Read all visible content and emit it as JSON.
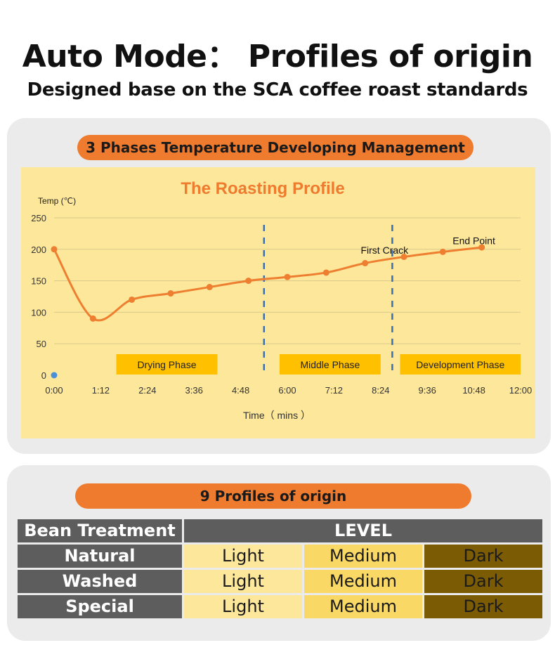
{
  "header": {
    "title": "Auto Mode： Profiles of origin",
    "subtitle": "Designed base on the SCA coffee roast standards"
  },
  "section1": {
    "pill_label": "3 Phases Temperature Developing Management"
  },
  "chart_data": {
    "type": "line",
    "title": "The Roasting Profile",
    "ylabel": "Temp (℃)",
    "xlabel": "Time（ mins ）",
    "ylim": [
      0,
      250
    ],
    "yticks": [
      "0",
      "50",
      "100",
      "150",
      "200",
      "250"
    ],
    "xticks": [
      "0:00",
      "1:12",
      "2:24",
      "3:36",
      "4:48",
      "6:00",
      "7:12",
      "8:24",
      "9:36",
      "10:48",
      "12:00"
    ],
    "xlim_minutes": [
      0,
      12
    ],
    "grid": true,
    "series": [
      {
        "x_minutes": [
          0,
          1,
          2,
          3,
          4,
          5,
          6,
          7,
          8,
          9,
          10,
          11
        ],
        "values": [
          200,
          90,
          120,
          130,
          140,
          150,
          156,
          163,
          178,
          188,
          196,
          203
        ]
      }
    ],
    "origin_marker": {
      "x_minutes": 0,
      "y": 0,
      "color": "#4a90d9"
    },
    "phase_dividers_minutes": [
      5.4,
      8.7
    ],
    "phases": [
      {
        "label": "Drying Phase",
        "from": 1.6,
        "to": 4.2
      },
      {
        "label": "Middle Phase",
        "from": 5.8,
        "to": 8.4
      },
      {
        "label": "Development Phase",
        "from": 8.9,
        "to": 12.0
      }
    ],
    "annotations": [
      {
        "text": "First  Crack",
        "x_minutes": 8.5,
        "y": 193
      },
      {
        "text": "End Point",
        "x_minutes": 10.8,
        "y": 208
      }
    ],
    "colors": {
      "line": "#ee7f30",
      "divider": "#3a6fb0",
      "phase_box": "#ffc000",
      "title": "#ef7b2e",
      "background": "#fde79b"
    }
  },
  "section2": {
    "pill_label": "9 Profiles of origin",
    "header": [
      "Bean Treatment",
      "LEVEL"
    ],
    "rows": [
      {
        "treatment": "Natural",
        "levels": [
          "Light",
          "Medium",
          "Dark"
        ]
      },
      {
        "treatment": "Washed",
        "levels": [
          "Light",
          "Medium",
          "Dark"
        ]
      },
      {
        "treatment": "Special",
        "levels": [
          "Light",
          "Medium",
          "Dark"
        ]
      }
    ]
  }
}
